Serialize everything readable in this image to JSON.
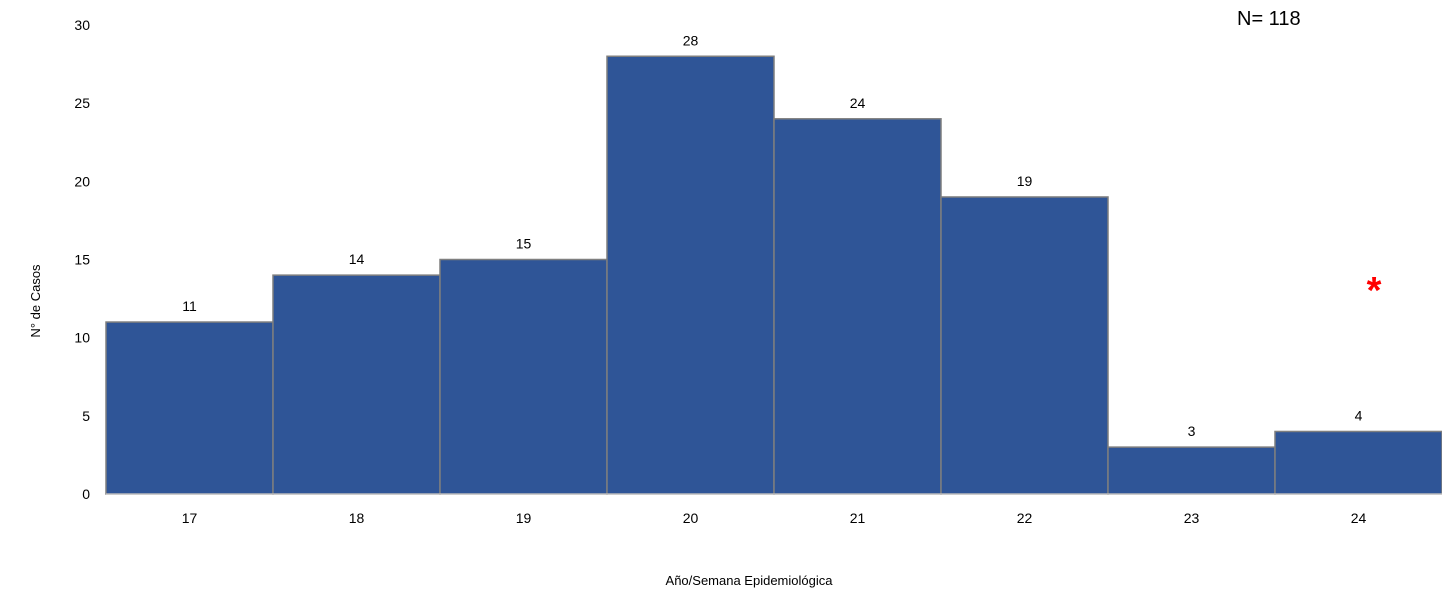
{
  "chart_data": {
    "type": "bar",
    "categories": [
      "17",
      "18",
      "19",
      "20",
      "21",
      "22",
      "23",
      "24"
    ],
    "values": [
      11,
      14,
      15,
      28,
      24,
      19,
      3,
      4
    ],
    "title": "",
    "xlabel": "Año/Semana Epidemiológica",
    "ylabel": "N° de Casos",
    "ylim": [
      0,
      30
    ],
    "yticks": [
      0,
      5,
      10,
      15,
      20,
      25,
      30
    ],
    "grid": false,
    "bar_color": "#2F5597",
    "bar_edge_color": "#7F7F7F",
    "annotations": {
      "total": "N= 118",
      "marker": "*",
      "marker_color": "#FF0000",
      "marker_category": "24"
    }
  }
}
